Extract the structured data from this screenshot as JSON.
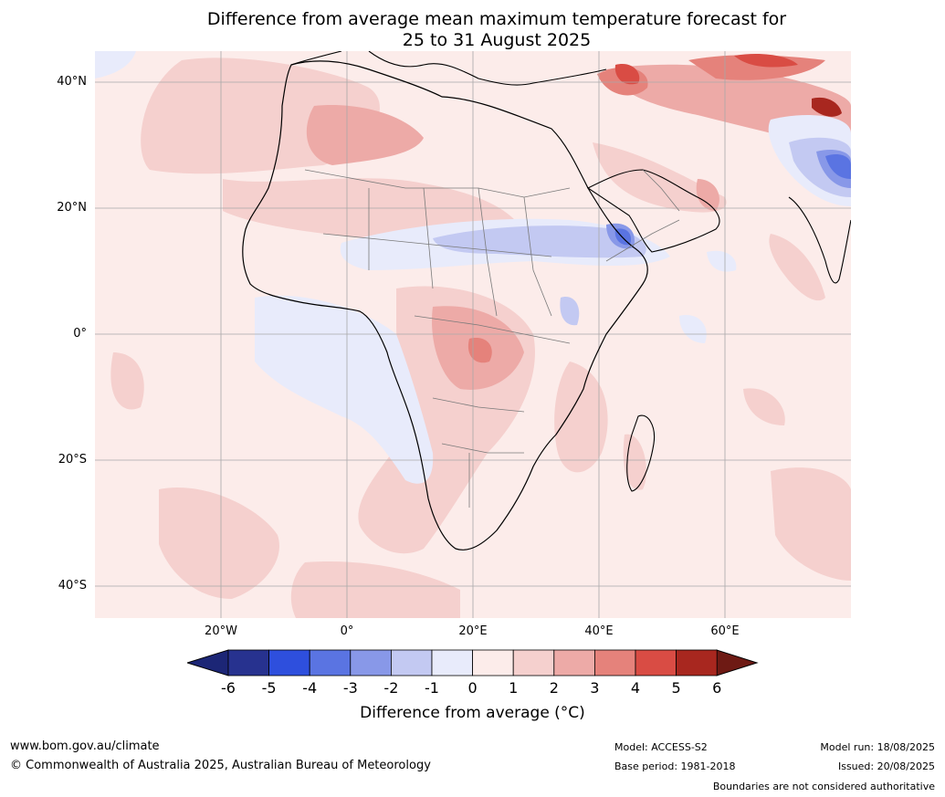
{
  "title": {
    "line1": "Difference from average mean maximum temperature forecast for",
    "line2": "25 to 31 August 2025"
  },
  "map": {
    "region": "Africa",
    "lat_labels": [
      "40°N",
      "20°N",
      "0°",
      "20°S",
      "40°S"
    ],
    "lon_labels": [
      "20°W",
      "0°",
      "20°E",
      "40°E",
      "60°E"
    ]
  },
  "colorbar": {
    "ticks": [
      "-6",
      "-5",
      "-4",
      "-3",
      "-2",
      "-1",
      "0",
      "1",
      "2",
      "3",
      "4",
      "5",
      "6"
    ],
    "colors": [
      "#27328f",
      "#2e4fdd",
      "#5a74e2",
      "#8898e8",
      "#c3c9f2",
      "#e8ebfb",
      "#fcecea",
      "#f5d0ce",
      "#edaaa7",
      "#e5827b",
      "#d94c44",
      "#a8271f"
    ],
    "under_color": "#1c2676",
    "over_color": "#6e1a14",
    "label": "Difference from average (°C)"
  },
  "footer": {
    "website": "www.bom.gov.au/climate",
    "copyright": "© Commonwealth of Australia 2025, Australian Bureau of Meteorology",
    "model": "Model: ACCESS-S2",
    "base_period": "Base period: 1981-2018",
    "model_run": "Model run: 18/08/2025",
    "issued": "Issued: 20/08/2025",
    "disclaimer": "Boundaries are not considered authoritative"
  }
}
